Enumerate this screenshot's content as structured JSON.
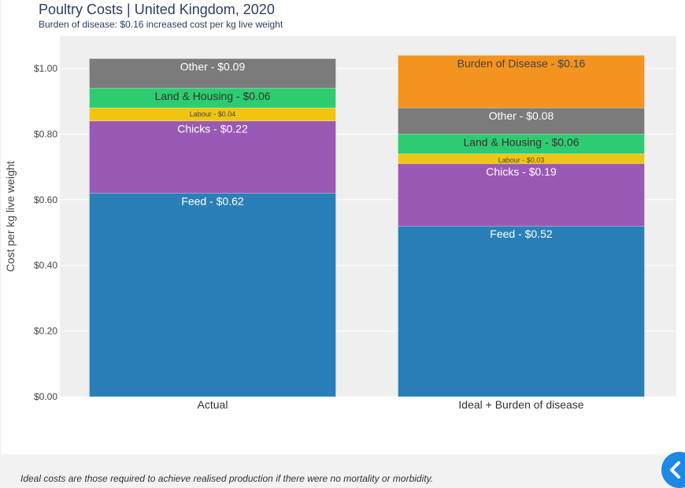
{
  "header": {
    "title": "Poultry Costs | United Kingdom, 2020",
    "subtitle": "Burden of disease: $0.16 increased cost per kg live weight"
  },
  "footer": {
    "note": "Ideal costs are those required to achieve realised production if there were no mortality or morbidity."
  },
  "icons": {
    "collapse": "chevron-left-icon"
  },
  "chart_data": {
    "type": "bar",
    "stacked": true,
    "title": "Poultry Costs | United Kingdom, 2020",
    "subtitle": "Burden of disease: $0.16 increased cost per kg live weight",
    "xlabel": "",
    "ylabel": "Cost per kg live weight",
    "ylim": [
      0,
      1.0
    ],
    "yticks": [
      "$0.00",
      "$0.20",
      "$0.40",
      "$0.60",
      "$0.80",
      "$1.00"
    ],
    "ytick_values": [
      0,
      0.2,
      0.4,
      0.6,
      0.8,
      1.0
    ],
    "grid": true,
    "categories": [
      "Actual",
      "Ideal + Burden of disease"
    ],
    "series": [
      {
        "name": "Feed",
        "color": "#2b7fb8",
        "values": [
          0.62,
          0.52
        ],
        "labels": [
          "Feed - $0.62",
          "Feed - $0.52"
        ],
        "label_color": "#ffffff",
        "label_size": "large"
      },
      {
        "name": "Chicks",
        "color": "#9a59b5",
        "values": [
          0.22,
          0.19
        ],
        "labels": [
          "Chicks - $0.22",
          "Chicks - $0.19"
        ],
        "label_color": "#ffffff",
        "label_size": "large"
      },
      {
        "name": "Labour",
        "color": "#f1c40f",
        "values": [
          0.04,
          0.03
        ],
        "labels": [
          "Labour - $0.04",
          "Labour - $0.03"
        ],
        "label_color": "#444444",
        "label_size": "small"
      },
      {
        "name": "Land & Housing",
        "color": "#2ecc71",
        "values": [
          0.06,
          0.06
        ],
        "labels": [
          "Land & Housing - $0.06",
          "Land & Housing - $0.06"
        ],
        "label_color": "#333333",
        "label_size": "large"
      },
      {
        "name": "Other",
        "color": "#7b7b7b",
        "values": [
          0.09,
          0.08
        ],
        "labels": [
          "Other - $0.09",
          "Other - $0.08"
        ],
        "label_color": "#ffffff",
        "label_size": "large"
      },
      {
        "name": "Burden of Disease",
        "color": "#f39320",
        "values": [
          0,
          0.16
        ],
        "labels": [
          "",
          "Burden of Disease - $0.16"
        ],
        "label_color": "#444444",
        "label_size": "large"
      }
    ]
  }
}
